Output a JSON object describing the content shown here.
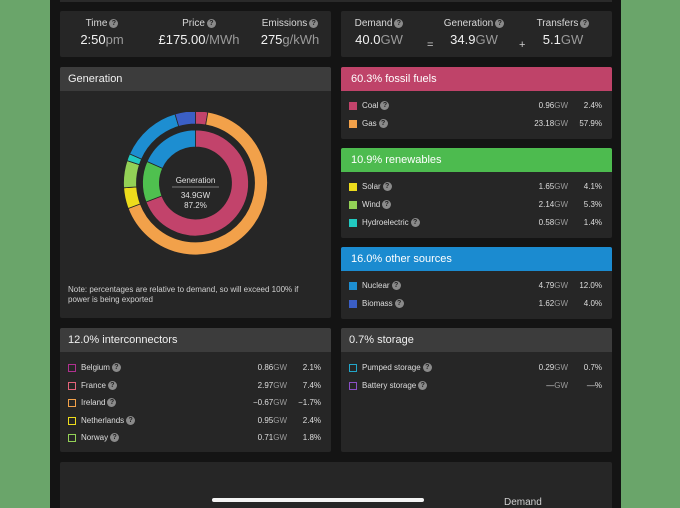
{
  "stats": {
    "time": {
      "label": "Time",
      "value": "2:50",
      "unit": "pm"
    },
    "price": {
      "label": "Price",
      "value": "£175.00",
      "unit": "/MWh"
    },
    "emissions": {
      "label": "Emissions",
      "value": "275",
      "unit": "g/kWh"
    },
    "demand": {
      "label": "Demand",
      "value": "40.0",
      "unit": "GW"
    },
    "generation": {
      "label": "Generation",
      "value": "34.9",
      "unit": "GW"
    },
    "transfers": {
      "label": "Transfers",
      "value": "5.1",
      "unit": "GW"
    },
    "op_equals": "=",
    "op_plus": "+"
  },
  "generation_panel": {
    "title": "Generation",
    "center_label": "Generation",
    "center_value": "34.9GW",
    "center_pct": "87.2%",
    "note": "Note: percentages are relative to demand, so will exceed 100% if power is being exported"
  },
  "donut": {
    "outer": [
      {
        "name": "Coal",
        "pct": 2.4,
        "color": "#c2436b"
      },
      {
        "name": "Gas",
        "pct": 57.9,
        "color": "#f2a14a"
      },
      {
        "name": "Solar",
        "pct": 4.1,
        "color": "#eddc1c"
      },
      {
        "name": "Wind",
        "pct": 5.3,
        "color": "#93d156"
      },
      {
        "name": "Hydroelectric",
        "pct": 1.4,
        "color": "#22c9c0"
      },
      {
        "name": "Nuclear",
        "pct": 12.0,
        "color": "#1d8ed1"
      },
      {
        "name": "Biomass",
        "pct": 4.0,
        "color": "#3b5fc6"
      }
    ],
    "inner": [
      {
        "name": "fossil fuels",
        "pct": 60.3,
        "color": "#c2436b"
      },
      {
        "name": "renewables",
        "pct": 10.9,
        "color": "#4fc04f"
      },
      {
        "name": "other sources",
        "pct": 16.0,
        "color": "#1d8ed1"
      }
    ]
  },
  "fossil": {
    "title": "60.3% fossil fuels",
    "color": "#bf4369",
    "rows": [
      {
        "name": "Coal",
        "gw": "0.96",
        "pct": "2.4%",
        "color": "#c2436b"
      },
      {
        "name": "Gas",
        "gw": "23.18",
        "pct": "57.9%",
        "color": "#f2a14a"
      }
    ]
  },
  "renewables": {
    "title": "10.9% renewables",
    "color": "#4dbb4f",
    "rows": [
      {
        "name": "Solar",
        "gw": "1.65",
        "pct": "4.1%",
        "color": "#eddc1c"
      },
      {
        "name": "Wind",
        "gw": "2.14",
        "pct": "5.3%",
        "color": "#93d156"
      },
      {
        "name": "Hydroelectric",
        "gw": "0.58",
        "pct": "1.4%",
        "color": "#22c9c0"
      }
    ]
  },
  "other": {
    "title": "16.0% other sources",
    "color": "#1b8bd0",
    "rows": [
      {
        "name": "Nuclear",
        "gw": "4.79",
        "pct": "12.0%",
        "color": "#1d8ed1"
      },
      {
        "name": "Biomass",
        "gw": "1.62",
        "pct": "4.0%",
        "color": "#3b5fc6"
      }
    ]
  },
  "interconnectors": {
    "title": "12.0% interconnectors",
    "rows": [
      {
        "name": "Belgium",
        "gw": "0.86",
        "pct": "2.1%",
        "color": "#b0308f"
      },
      {
        "name": "France",
        "gw": "2.97",
        "pct": "7.4%",
        "color": "#e3637a"
      },
      {
        "name": "Ireland",
        "gw": "−0.67",
        "pct": "−1.7%",
        "color": "#f2a14a"
      },
      {
        "name": "Netherlands",
        "gw": "0.95",
        "pct": "2.4%",
        "color": "#eddc1c"
      },
      {
        "name": "Norway",
        "gw": "0.71",
        "pct": "1.8%",
        "color": "#93d156"
      }
    ]
  },
  "storage": {
    "title": "0.7% storage",
    "rows": [
      {
        "name": "Pumped storage",
        "gw": "0.29",
        "pct": "0.7%",
        "color": "#22a6c9"
      },
      {
        "name": "Battery storage",
        "gw": "—",
        "pct": "—%",
        "color": "#8a4fc6"
      }
    ]
  },
  "gw_unit": "GW",
  "bottom": {
    "demand_label": "Demand"
  }
}
